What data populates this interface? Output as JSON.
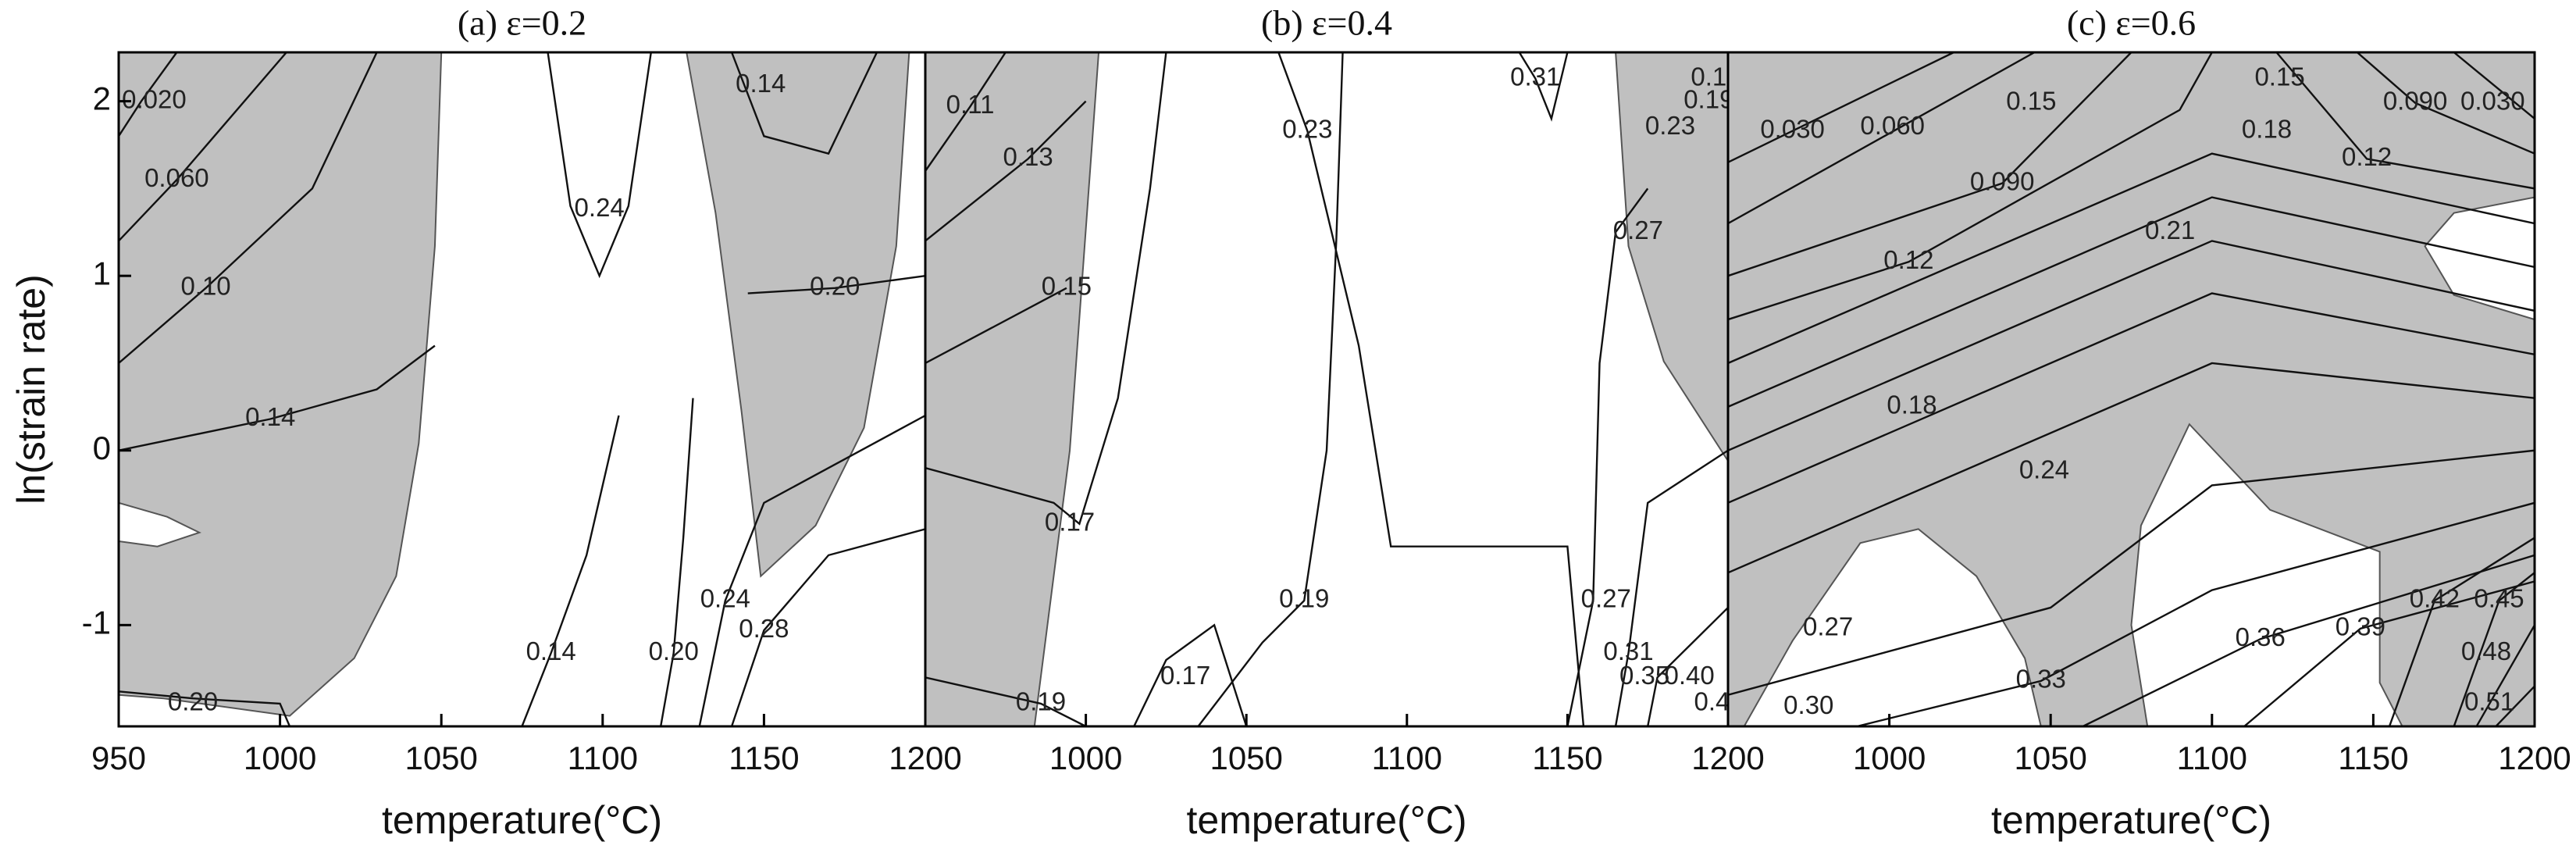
{
  "chart_data": [
    {
      "type": "contour",
      "title": "(a)  ε=0.2",
      "xlabel": "temperature(°C)",
      "ylabel": "ln(strain rate)",
      "xlim": [
        950,
        1200
      ],
      "ylim": [
        -1.58,
        2.28
      ],
      "xticks": [
        950,
        1000,
        1050,
        1100,
        1150,
        1200
      ],
      "yticks": [
        -1,
        0,
        1,
        2
      ],
      "shade_color": "#c0c0c0",
      "shaded_regions": [
        [
          [
            950,
            2.28
          ],
          [
            1050,
            2.28
          ],
          [
            1048,
            1.17
          ],
          [
            1043,
            0.04
          ],
          [
            1036,
            -0.72
          ],
          [
            1023,
            -1.19
          ],
          [
            1003,
            -1.52
          ],
          [
            964,
            -1.42
          ],
          [
            950,
            -1.4
          ]
        ],
        [
          [
            1126,
            2.28
          ],
          [
            1195,
            2.28
          ],
          [
            1191,
            1.17
          ],
          [
            1181,
            0.13
          ],
          [
            1166,
            -0.43
          ],
          [
            1149,
            -0.72
          ],
          [
            1143,
            0.23
          ],
          [
            1135,
            1.36
          ]
        ]
      ],
      "unshaded_regions": [
        [
          [
            950,
            -0.3
          ],
          [
            965,
            -0.38
          ],
          [
            975,
            -0.47
          ],
          [
            962,
            -0.55
          ],
          [
            950,
            -0.52
          ]
        ]
      ],
      "contours": [
        [
          [
            950,
            1.8
          ],
          [
            957,
            2.0
          ],
          [
            968,
            2.28
          ]
        ],
        [
          [
            950,
            1.2
          ],
          [
            968,
            1.55
          ],
          [
            1002,
            2.28
          ]
        ],
        [
          [
            950,
            0.5
          ],
          [
            977,
            0.93
          ],
          [
            1010,
            1.5
          ],
          [
            1030,
            2.28
          ]
        ],
        [
          [
            950,
            0.0
          ],
          [
            997,
            0.18
          ],
          [
            1030,
            0.35
          ],
          [
            1048,
            0.6
          ]
        ],
        [
          [
            950,
            -1.38
          ],
          [
            973,
            -1.42
          ],
          [
            1000,
            -1.45
          ],
          [
            1003,
            -1.58
          ]
        ],
        [
          [
            1083,
            2.28
          ],
          [
            1090,
            1.4
          ],
          [
            1099,
            1.0
          ],
          [
            1108,
            1.4
          ],
          [
            1115,
            2.28
          ]
        ],
        [
          [
            1075,
            -1.58
          ],
          [
            1084,
            -1.16
          ],
          [
            1095,
            -0.6
          ],
          [
            1105,
            0.2
          ]
        ],
        [
          [
            1118,
            -1.58
          ],
          [
            1122,
            -1.16
          ],
          [
            1125,
            -0.5
          ],
          [
            1128,
            0.3
          ]
        ],
        [
          [
            1130,
            -1.58
          ],
          [
            1138,
            -0.86
          ],
          [
            1150,
            -0.3
          ],
          [
            1200,
            0.2
          ]
        ],
        [
          [
            1140,
            -1.58
          ],
          [
            1150,
            -1.03
          ],
          [
            1170,
            -0.6
          ],
          [
            1200,
            -0.45
          ]
        ],
        [
          [
            1140,
            2.28
          ],
          [
            1150,
            1.8
          ],
          [
            1170,
            1.7
          ],
          [
            1185,
            2.28
          ]
        ],
        [
          [
            1145,
            0.9
          ],
          [
            1172,
            0.93
          ],
          [
            1200,
            1.0
          ]
        ]
      ],
      "contour_labels": [
        {
          "label": "0.020",
          "x": 961,
          "y": 2.0
        },
        {
          "label": "0.060",
          "x": 968,
          "y": 1.55
        },
        {
          "label": "0.10",
          "x": 977,
          "y": 0.93
        },
        {
          "label": "0.14",
          "x": 997,
          "y": 0.18
        },
        {
          "label": "0.20",
          "x": 973,
          "y": -1.45
        },
        {
          "label": "0.24",
          "x": 1099,
          "y": 1.38
        },
        {
          "label": "0.14",
          "x": 1084,
          "y": -1.16
        },
        {
          "label": "0.20",
          "x": 1122,
          "y": -1.16
        },
        {
          "label": "0.24",
          "x": 1138,
          "y": -0.86
        },
        {
          "label": "0.28",
          "x": 1150,
          "y": -1.03
        },
        {
          "label": "0.14",
          "x": 1149,
          "y": 2.09
        },
        {
          "label": "0.20",
          "x": 1172,
          "y": 0.93
        }
      ]
    },
    {
      "type": "contour",
      "title": "(b)  ε=0.4",
      "xlabel": "temperature(°C)",
      "xlim": [
        950,
        1200
      ],
      "ylim": [
        -1.58,
        2.28
      ],
      "xticks": [
        1000,
        1050,
        1100,
        1150,
        1200
      ],
      "shade_color": "#c0c0c0",
      "shaded_regions": [
        [
          [
            950,
            2.28
          ],
          [
            1004,
            2.28
          ],
          [
            995,
            0.0
          ],
          [
            984,
            -1.58
          ],
          [
            950,
            -1.58
          ]
        ],
        [
          [
            1165,
            2.28
          ],
          [
            1200,
            2.28
          ],
          [
            1200,
            -0.06
          ],
          [
            1180,
            0.51
          ],
          [
            1169,
            1.17
          ]
        ]
      ],
      "unshaded_regions": [],
      "contours": [
        [
          [
            950,
            1.6
          ],
          [
            964,
            1.97
          ],
          [
            975,
            2.28
          ]
        ],
        [
          [
            950,
            1.2
          ],
          [
            982,
            1.67
          ],
          [
            1000,
            2.0
          ]
        ],
        [
          [
            950,
            0.5
          ],
          [
            994,
            0.93
          ]
        ],
        [
          [
            950,
            -0.1
          ],
          [
            990,
            -0.3
          ],
          [
            998,
            -0.42
          ],
          [
            1010,
            0.3
          ],
          [
            1020,
            1.5
          ],
          [
            1025,
            2.28
          ]
        ],
        [
          [
            950,
            -1.3
          ],
          [
            986,
            -1.45
          ],
          [
            1000,
            -1.58
          ]
        ],
        [
          [
            1060,
            2.28
          ],
          [
            1069,
            1.83
          ],
          [
            1085,
            0.6
          ],
          [
            1095,
            -0.55
          ],
          [
            1150,
            -0.55
          ],
          [
            1155,
            -1.58
          ]
        ],
        [
          [
            1035,
            -1.58
          ],
          [
            1055,
            -1.1
          ],
          [
            1068,
            -0.86
          ],
          [
            1075,
            0.0
          ],
          [
            1078,
            1.2
          ],
          [
            1080,
            2.28
          ]
        ],
        [
          [
            1015,
            -1.58
          ],
          [
            1025,
            -1.2
          ],
          [
            1040,
            -1.0
          ],
          [
            1050,
            -1.58
          ]
        ],
        [
          [
            1150,
            -1.58
          ],
          [
            1158,
            -0.86
          ],
          [
            1160,
            0.5
          ],
          [
            1165,
            1.25
          ],
          [
            1175,
            1.5
          ]
        ],
        [
          [
            1135,
            2.28
          ],
          [
            1140,
            2.13
          ],
          [
            1145,
            1.9
          ],
          [
            1150,
            2.28
          ]
        ],
        [
          [
            1165,
            -1.58
          ],
          [
            1169,
            -1.16
          ],
          [
            1175,
            -0.3
          ],
          [
            1200,
            0.0
          ]
        ],
        [
          [
            1175,
            -1.58
          ],
          [
            1178,
            -1.3
          ],
          [
            1200,
            -0.9
          ]
        ]
      ],
      "contour_labels": [
        {
          "label": "0.11",
          "x": 964,
          "y": 1.97
        },
        {
          "label": "0.13",
          "x": 982,
          "y": 1.67
        },
        {
          "label": "0.15",
          "x": 994,
          "y": 0.93
        },
        {
          "label": "0.17",
          "x": 995,
          "y": -0.42
        },
        {
          "label": "0.19",
          "x": 986,
          "y": -1.45
        },
        {
          "label": "0.23",
          "x": 1069,
          "y": 1.83
        },
        {
          "label": "0.31",
          "x": 1140,
          "y": 2.13
        },
        {
          "label": "0.27",
          "x": 1172,
          "y": 1.25
        },
        {
          "label": "0.19",
          "x": 1068,
          "y": -0.86
        },
        {
          "label": "0.17",
          "x": 1031,
          "y": -1.3
        },
        {
          "label": "0.27",
          "x": 1162,
          "y": -0.86
        },
        {
          "label": "0.31",
          "x": 1169,
          "y": -1.16
        },
        {
          "label": "0.35",
          "x": 1174,
          "y": -1.3
        },
        {
          "label": "0.40",
          "x": 1188,
          "y": -1.3
        },
        {
          "label": "0.4",
          "x": 1195,
          "y": -1.45
        },
        {
          "label": "0.23",
          "x": 1182,
          "y": 1.85
        },
        {
          "label": "0.19",
          "x": 1194,
          "y": 2.0
        },
        {
          "label": "0.1",
          "x": 1194,
          "y": 2.13
        }
      ]
    },
    {
      "type": "contour",
      "title": "(c)  ε=0.6",
      "xlabel": "temperature(°C)",
      "xlim": [
        950,
        1200
      ],
      "ylim": [
        -1.58,
        2.28
      ],
      "xticks": [
        1000,
        1050,
        1100,
        1150,
        1200
      ],
      "shade_color": "#c0c0c0",
      "shaded_regions": [
        [
          [
            950,
            -1.58
          ],
          [
            1200,
            -1.58
          ],
          [
            1200,
            2.28
          ],
          [
            950,
            2.28
          ]
        ]
      ],
      "unshaded_regions": [
        [
          [
            955,
            -1.58
          ],
          [
            970,
            -1.09
          ],
          [
            991,
            -0.53
          ],
          [
            1009,
            -0.45
          ],
          [
            1027,
            -0.72
          ],
          [
            1042,
            -1.19
          ],
          [
            1047,
            -1.58
          ]
        ],
        [
          [
            1080,
            -1.58
          ],
          [
            1075,
            -1.0
          ],
          [
            1078,
            -0.43
          ],
          [
            1093,
            0.15
          ],
          [
            1118,
            -0.34
          ],
          [
            1152,
            -0.58
          ],
          [
            1152,
            -1.33
          ],
          [
            1159,
            -1.58
          ]
        ],
        [
          [
            1200,
            1.45
          ],
          [
            1175,
            1.36
          ],
          [
            1166,
            1.17
          ],
          [
            1175,
            0.89
          ],
          [
            1200,
            0.75
          ]
        ]
      ],
      "contours": [
        [
          [
            950,
            1.65
          ],
          [
            1020,
            2.28
          ]
        ],
        [
          [
            1175,
            2.28
          ],
          [
            1200,
            1.9
          ]
        ],
        [
          [
            950,
            1.3
          ],
          [
            1045,
            2.28
          ]
        ],
        [
          [
            950,
            1.0
          ],
          [
            1035,
            1.53
          ],
          [
            1075,
            2.28
          ]
        ],
        [
          [
            1145,
            2.28
          ],
          [
            1163,
            1.99
          ],
          [
            1200,
            1.7
          ]
        ],
        [
          [
            950,
            0.75
          ],
          [
            1006,
            1.08
          ],
          [
            1090,
            1.95
          ],
          [
            1100,
            2.28
          ]
        ],
        [
          [
            1120,
            2.28
          ],
          [
            1148,
            1.67
          ],
          [
            1200,
            1.5
          ]
        ],
        [
          [
            950,
            0.5
          ],
          [
            1100,
            1.7
          ],
          [
            1200,
            1.3
          ]
        ],
        [
          [
            950,
            0.25
          ],
          [
            1100,
            1.45
          ],
          [
            1200,
            1.05
          ]
        ],
        [
          [
            950,
            0.0
          ],
          [
            1100,
            1.2
          ],
          [
            1200,
            0.8
          ]
        ],
        [
          [
            950,
            -0.3
          ],
          [
            1100,
            0.9
          ],
          [
            1200,
            0.55
          ]
        ],
        [
          [
            950,
            -0.7
          ],
          [
            1100,
            0.5
          ],
          [
            1200,
            0.3
          ]
        ],
        [
          [
            950,
            -1.4
          ],
          [
            1050,
            -0.9
          ],
          [
            1100,
            -0.2
          ],
          [
            1200,
            0.0
          ]
        ],
        [
          [
            990,
            -1.58
          ],
          [
            1047,
            -1.32
          ],
          [
            1100,
            -0.8
          ],
          [
            1200,
            -0.3
          ]
        ],
        [
          [
            1060,
            -1.58
          ],
          [
            1115,
            -1.08
          ],
          [
            1200,
            -0.6
          ]
        ],
        [
          [
            1110,
            -1.58
          ],
          [
            1146,
            -1.02
          ],
          [
            1200,
            -0.75
          ]
        ],
        [
          [
            1155,
            -1.58
          ],
          [
            1169,
            -0.86
          ],
          [
            1200,
            -0.5
          ]
        ],
        [
          [
            1175,
            -1.58
          ],
          [
            1189,
            -0.86
          ],
          [
            1200,
            -0.7
          ]
        ],
        [
          [
            1182,
            -1.58
          ],
          [
            1200,
            -1.0
          ]
        ],
        [
          [
            1188,
            -1.58
          ],
          [
            1200,
            -1.35
          ]
        ]
      ],
      "contour_labels": [
        {
          "label": "0.030",
          "x": 970,
          "y": 1.83
        },
        {
          "label": "0.060",
          "x": 1001,
          "y": 1.85
        },
        {
          "label": "0.15",
          "x": 1044,
          "y": 1.99
        },
        {
          "label": "0.15",
          "x": 1121,
          "y": 2.13
        },
        {
          "label": "0.18",
          "x": 1117,
          "y": 1.83
        },
        {
          "label": "0.090",
          "x": 1035,
          "y": 1.53
        },
        {
          "label": "0.090",
          "x": 1163,
          "y": 1.99
        },
        {
          "label": "0.030",
          "x": 1187,
          "y": 1.99
        },
        {
          "label": "0.12",
          "x": 1148,
          "y": 1.67
        },
        {
          "label": "0.12",
          "x": 1006,
          "y": 1.08
        },
        {
          "label": "0.21",
          "x": 1087,
          "y": 1.25
        },
        {
          "label": "0.18",
          "x": 1007,
          "y": 0.25
        },
        {
          "label": "0.24",
          "x": 1048,
          "y": -0.12
        },
        {
          "label": "0.27",
          "x": 981,
          "y": -1.02
        },
        {
          "label": "0.30",
          "x": 975,
          "y": -1.47
        },
        {
          "label": "0.33",
          "x": 1047,
          "y": -1.32
        },
        {
          "label": "0.36",
          "x": 1115,
          "y": -1.08
        },
        {
          "label": "0.39",
          "x": 1146,
          "y": -1.02
        },
        {
          "label": "0.42",
          "x": 1169,
          "y": -0.86
        },
        {
          "label": "0.45",
          "x": 1189,
          "y": -0.86
        },
        {
          "label": "0.48",
          "x": 1185,
          "y": -1.16
        },
        {
          "label": "0.51",
          "x": 1186,
          "y": -1.45
        }
      ]
    }
  ]
}
